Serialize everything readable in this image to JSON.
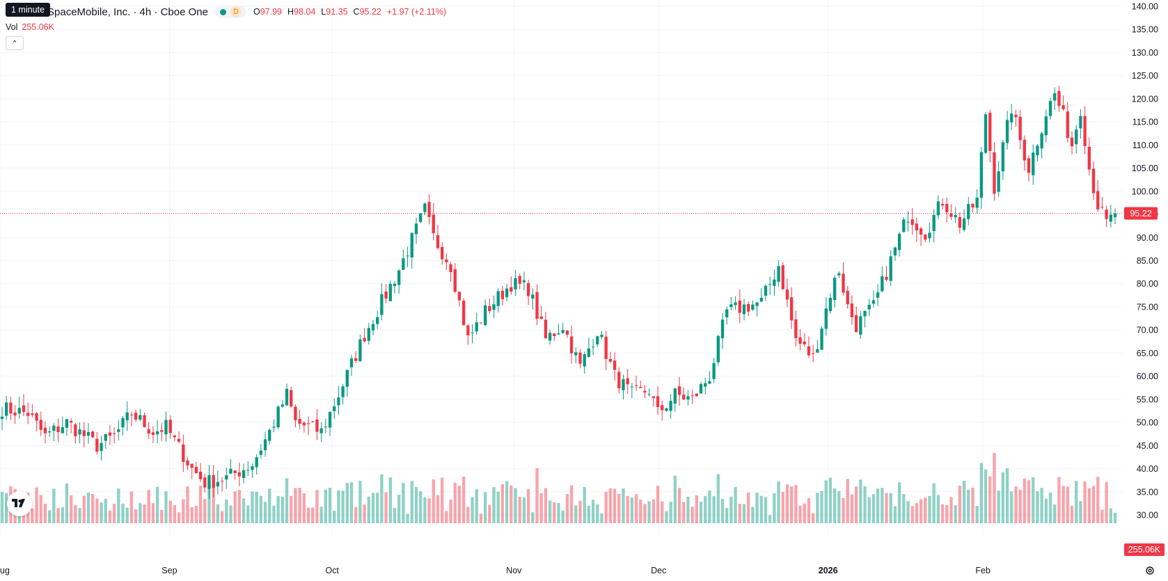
{
  "header": {
    "title": "SpaceMobile, Inc. · 4h · Cboe One",
    "tooltip": "1 minute",
    "status_letter": "D",
    "ohlc": {
      "o_label": "O",
      "o": "97.99",
      "h_label": "H",
      "h": "98.04",
      "l_label": "L",
      "l": "91.35",
      "c_label": "C",
      "c": "95.22",
      "change": "+1.97 (+2.11%)"
    },
    "vol_label": "Vol",
    "vol_value": "255.06K",
    "collapse_icon": "chevron-up-icon"
  },
  "colors": {
    "up": "#089981",
    "down": "#f23645",
    "grid": "#f0f3fa"
  },
  "chart_data": {
    "type": "candlestick",
    "y_ticks": [
      "140.00",
      "135.00",
      "130.00",
      "125.00",
      "120.00",
      "115.00",
      "110.00",
      "105.00",
      "100.00",
      "95.00",
      "90.00",
      "85.00",
      "80.00",
      "75.00",
      "70.00",
      "65.00",
      "60.00",
      "55.00",
      "50.00",
      "45.00",
      "40.00",
      "35.00",
      "30.00"
    ],
    "ylim": [
      28.5,
      140
    ],
    "x_ticks": [
      {
        "label": "ug",
        "pos": 0.0,
        "bold": false
      },
      {
        "label": "Sep",
        "pos": 0.151,
        "bold": false
      },
      {
        "label": "Oct",
        "pos": 0.296,
        "bold": false
      },
      {
        "label": "Nov",
        "pos": 0.458,
        "bold": false
      },
      {
        "label": "Dec",
        "pos": 0.587,
        "bold": false
      },
      {
        "label": "2026",
        "pos": 0.738,
        "bold": true
      },
      {
        "label": "Feb",
        "pos": 0.876,
        "bold": false
      }
    ],
    "last_price": "95.22",
    "last_price_value": 95.22,
    "last_volume": "255.06K",
    "close_waypoints": [
      [
        0,
        53
      ],
      [
        6,
        52
      ],
      [
        10,
        47
      ],
      [
        15,
        50
      ],
      [
        22,
        45
      ],
      [
        26,
        47
      ],
      [
        30,
        52
      ],
      [
        35,
        48
      ],
      [
        38,
        49
      ],
      [
        44,
        40
      ],
      [
        47,
        37
      ],
      [
        52,
        38
      ],
      [
        58,
        41
      ],
      [
        62,
        48
      ],
      [
        66,
        56
      ],
      [
        68,
        50
      ],
      [
        74,
        48
      ],
      [
        78,
        56
      ],
      [
        84,
        69
      ],
      [
        88,
        76
      ],
      [
        92,
        83
      ],
      [
        98,
        96
      ],
      [
        100,
        90
      ],
      [
        104,
        84
      ],
      [
        108,
        68
      ],
      [
        112,
        74
      ],
      [
        118,
        80
      ],
      [
        122,
        79
      ],
      [
        126,
        68
      ],
      [
        130,
        71
      ],
      [
        134,
        62
      ],
      [
        138,
        70
      ],
      [
        142,
        60
      ],
      [
        146,
        56
      ],
      [
        150,
        57
      ],
      [
        152,
        52
      ],
      [
        156,
        56
      ],
      [
        160,
        55
      ],
      [
        164,
        60
      ],
      [
        168,
        74
      ],
      [
        172,
        75
      ],
      [
        176,
        76
      ],
      [
        180,
        84
      ],
      [
        184,
        68
      ],
      [
        188,
        64
      ],
      [
        192,
        78
      ],
      [
        194,
        83
      ],
      [
        196,
        75
      ],
      [
        198,
        71
      ],
      [
        202,
        75
      ],
      [
        206,
        85
      ],
      [
        210,
        95
      ],
      [
        214,
        91
      ],
      [
        218,
        98
      ],
      [
        222,
        93
      ],
      [
        226,
        98
      ],
      [
        228,
        117
      ],
      [
        230,
        101
      ],
      [
        234,
        118
      ],
      [
        236,
        111
      ],
      [
        238,
        105
      ],
      [
        242,
        117
      ],
      [
        244,
        121
      ],
      [
        246,
        116
      ],
      [
        248,
        110
      ],
      [
        250,
        118
      ],
      [
        252,
        105
      ],
      [
        254,
        97
      ],
      [
        256,
        93
      ],
      [
        258,
        95
      ]
    ],
    "volume_ticks": "255.06K"
  }
}
